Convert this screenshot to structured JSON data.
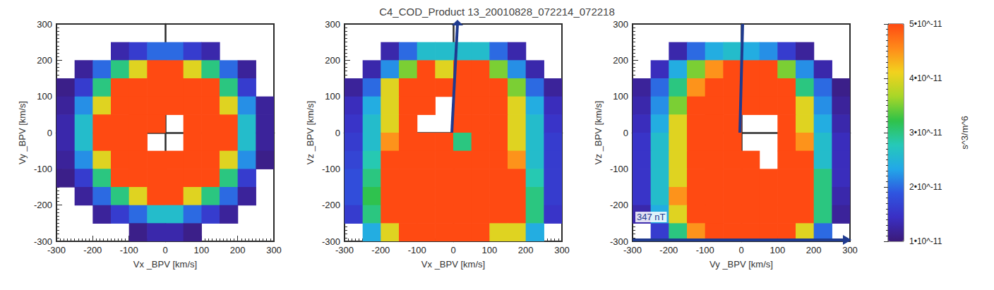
{
  "chart_data": {
    "type": "heatmap",
    "title": "C4_COD_Product 13_20010828_072214_072218",
    "grid": false,
    "x": [
      -275,
      -225,
      -175,
      -125,
      -75,
      -25,
      25,
      75,
      125,
      175,
      225,
      275
    ],
    "y": [
      275,
      225,
      175,
      125,
      75,
      25,
      -25,
      -75,
      -125,
      -175,
      -225,
      -275
    ],
    "panels": [
      {
        "x_label": "Vx _BPV [km/s]",
        "y_label": "Vy _BPV [km/s]",
        "xlim": [
          -300,
          300
        ],
        "ylim": [
          -300,
          300
        ],
        "xticks": [
          -300,
          -200,
          -100,
          0,
          100,
          200,
          300
        ],
        "yticks": [
          -300,
          -200,
          -100,
          0,
          100,
          200,
          300
        ],
        "values": [
          [
            null,
            null,
            null,
            null,
            null,
            null,
            null,
            null,
            null,
            null,
            null,
            null
          ],
          [
            null,
            null,
            null,
            1.3e-11,
            1.6e-11,
            2e-11,
            2e-11,
            1.6e-11,
            1.3e-11,
            null,
            null,
            null
          ],
          [
            null,
            1.2e-11,
            2e-11,
            3e-11,
            4e-11,
            5.5e-11,
            5.5e-11,
            4e-11,
            3e-11,
            2e-11,
            1.2e-11,
            null
          ],
          [
            1.1e-11,
            1.6e-11,
            3e-11,
            5.5e-11,
            5.5e-11,
            5.5e-11,
            5.5e-11,
            5.5e-11,
            5.5e-11,
            3e-11,
            1.6e-11,
            null
          ],
          [
            1.2e-11,
            2.2e-11,
            4e-11,
            5.5e-11,
            5.5e-11,
            5.5e-11,
            5.5e-11,
            5.5e-11,
            5.5e-11,
            4e-11,
            2.2e-11,
            1.2e-11
          ],
          [
            1.3e-11,
            2.6e-11,
            5.5e-11,
            5.5e-11,
            5.5e-11,
            5.5e-11,
            null,
            5.5e-11,
            5.5e-11,
            5.5e-11,
            2.6e-11,
            1.2e-11
          ],
          [
            1.3e-11,
            2.6e-11,
            5.5e-11,
            5.5e-11,
            5.5e-11,
            null,
            null,
            5.5e-11,
            5.5e-11,
            5.5e-11,
            2.6e-11,
            1.2e-11
          ],
          [
            1.2e-11,
            2.2e-11,
            4e-11,
            5.5e-11,
            5.5e-11,
            5.5e-11,
            5.5e-11,
            5.5e-11,
            5.5e-11,
            4e-11,
            2.2e-11,
            1.1e-11
          ],
          [
            1.1e-11,
            1.6e-11,
            3e-11,
            5.5e-11,
            5.5e-11,
            5.5e-11,
            5.5e-11,
            5.5e-11,
            5.5e-11,
            3e-11,
            1.6e-11,
            null
          ],
          [
            null,
            1.2e-11,
            2e-11,
            3e-11,
            4e-11,
            5.5e-11,
            5.5e-11,
            4e-11,
            3e-11,
            2e-11,
            1.2e-11,
            null
          ],
          [
            null,
            null,
            1.2e-11,
            1.6e-11,
            2e-11,
            2.6e-11,
            2.6e-11,
            2e-11,
            1.6e-11,
            1.2e-11,
            null,
            null
          ],
          [
            null,
            null,
            null,
            null,
            1.1e-11,
            1.3e-11,
            1.3e-11,
            1.1e-11,
            null,
            null,
            null,
            null
          ]
        ]
      },
      {
        "x_label": "Vx _BPV [km/s]",
        "y_label": "Vz _BPV [km/s]",
        "xlim": [
          -300,
          300
        ],
        "ylim": [
          -300,
          300
        ],
        "xticks": [
          -300,
          -200,
          -100,
          0,
          100,
          200,
          300
        ],
        "yticks": [
          -300,
          -200,
          -100,
          0,
          100,
          200,
          300
        ],
        "values": [
          [
            null,
            null,
            null,
            null,
            null,
            null,
            null,
            null,
            null,
            null,
            null,
            null
          ],
          [
            null,
            null,
            1.3e-11,
            2e-11,
            2.6e-11,
            2.6e-11,
            2.6e-11,
            2.6e-11,
            2e-11,
            1.3e-11,
            null,
            null
          ],
          [
            null,
            1.3e-11,
            2.2e-11,
            3.5e-11,
            5.5e-11,
            4e-11,
            5.5e-11,
            5.5e-11,
            3.5e-11,
            2.2e-11,
            1.3e-11,
            null
          ],
          [
            1.2e-11,
            2e-11,
            4e-11,
            5.5e-11,
            5.5e-11,
            5.5e-11,
            5.5e-11,
            5.5e-11,
            5.5e-11,
            3.5e-11,
            2e-11,
            1.2e-11
          ],
          [
            1.4e-11,
            2.4e-11,
            4e-11,
            5.5e-11,
            5.5e-11,
            null,
            5.5e-11,
            5.5e-11,
            5.5e-11,
            4e-11,
            2.4e-11,
            1.4e-11
          ],
          [
            1.5e-11,
            2.6e-11,
            4e-11,
            5.5e-11,
            null,
            null,
            5.5e-11,
            5.5e-11,
            5.5e-11,
            4e-11,
            2.6e-11,
            1.5e-11
          ],
          [
            1.6e-11,
            2.6e-11,
            4.5e-11,
            5.5e-11,
            5.5e-11,
            5.5e-11,
            3e-11,
            5.5e-11,
            5.5e-11,
            4e-11,
            2.6e-11,
            1.6e-11
          ],
          [
            1.7e-11,
            2.8e-11,
            5.5e-11,
            5.5e-11,
            5.5e-11,
            5.5e-11,
            5.5e-11,
            5.5e-11,
            5.5e-11,
            4.5e-11,
            2.6e-11,
            1.6e-11
          ],
          [
            1.8e-11,
            3e-11,
            5.5e-11,
            5.5e-11,
            5.5e-11,
            5.5e-11,
            5.5e-11,
            5.5e-11,
            5.5e-11,
            5.5e-11,
            2.8e-11,
            1.6e-11
          ],
          [
            1.8e-11,
            3.2e-11,
            5.5e-11,
            5.5e-11,
            5.5e-11,
            5.5e-11,
            5.5e-11,
            5.5e-11,
            5.5e-11,
            5.5e-11,
            3e-11,
            1.6e-11
          ],
          [
            1.6e-11,
            3e-11,
            5.5e-11,
            5.5e-11,
            5.5e-11,
            5.5e-11,
            5.5e-11,
            5.5e-11,
            5.5e-11,
            5.5e-11,
            3e-11,
            1.5e-11
          ],
          [
            null,
            2.4e-11,
            4e-11,
            5.5e-11,
            5.5e-11,
            5.5e-11,
            5.5e-11,
            5.5e-11,
            4e-11,
            4e-11,
            2.4e-11,
            null
          ]
        ]
      },
      {
        "x_label": "Vy _BPV [km/s]",
        "y_label": "Vz _BPV [km/s]",
        "xlim": [
          -300,
          300
        ],
        "ylim": [
          -300,
          300
        ],
        "xticks": [
          -300,
          -200,
          -100,
          0,
          100,
          200,
          300
        ],
        "yticks": [
          -300,
          -200,
          -100,
          0,
          100,
          200,
          300
        ],
        "annotation": "347 nT",
        "values": [
          [
            null,
            null,
            null,
            null,
            null,
            null,
            null,
            null,
            null,
            null,
            null,
            null
          ],
          [
            null,
            null,
            1.3e-11,
            2e-11,
            2.4e-11,
            2.6e-11,
            2.4e-11,
            2.2e-11,
            1.6e-11,
            1.2e-11,
            null,
            null
          ],
          [
            null,
            1.4e-11,
            2.4e-11,
            3.5e-11,
            4.5e-11,
            5.5e-11,
            5.5e-11,
            5e-11,
            3.5e-11,
            2.2e-11,
            1.3e-11,
            null
          ],
          [
            1.2e-11,
            2e-11,
            3e-11,
            4.5e-11,
            5.5e-11,
            5.5e-11,
            5.5e-11,
            5.5e-11,
            5.5e-11,
            3e-11,
            2e-11,
            1.1e-11
          ],
          [
            1.3e-11,
            2.2e-11,
            3.5e-11,
            5.5e-11,
            5.5e-11,
            5.5e-11,
            5.5e-11,
            5.5e-11,
            5.5e-11,
            4e-11,
            2.2e-11,
            1.2e-11
          ],
          [
            1.4e-11,
            2.4e-11,
            4e-11,
            5.5e-11,
            5.5e-11,
            5.5e-11,
            null,
            null,
            5.5e-11,
            4e-11,
            2.4e-11,
            1.3e-11
          ],
          [
            1.5e-11,
            2.6e-11,
            4e-11,
            5.5e-11,
            5.5e-11,
            5.5e-11,
            null,
            null,
            5.5e-11,
            4.5e-11,
            2.6e-11,
            1.4e-11
          ],
          [
            1.5e-11,
            2.6e-11,
            4e-11,
            5.5e-11,
            5.5e-11,
            5.5e-11,
            5.5e-11,
            null,
            5.5e-11,
            5.5e-11,
            2.6e-11,
            1.4e-11
          ],
          [
            1.5e-11,
            2.6e-11,
            4e-11,
            5.5e-11,
            5.5e-11,
            5.5e-11,
            5.5e-11,
            5.5e-11,
            5.5e-11,
            5.5e-11,
            3e-11,
            1.4e-11
          ],
          [
            1.5e-11,
            2.6e-11,
            4.5e-11,
            5.5e-11,
            5.5e-11,
            5.5e-11,
            5.5e-11,
            5.5e-11,
            5.5e-11,
            5.5e-11,
            3e-11,
            1.3e-11
          ],
          [
            1.3e-11,
            2.4e-11,
            4e-11,
            5.5e-11,
            5.5e-11,
            5.5e-11,
            5.5e-11,
            5.5e-11,
            5.5e-11,
            5.5e-11,
            3e-11,
            1.2e-11
          ],
          [
            null,
            1.6e-11,
            3e-11,
            4.5e-11,
            5.5e-11,
            5.5e-11,
            5.5e-11,
            5.5e-11,
            5.5e-11,
            4e-11,
            2e-11,
            null
          ]
        ]
      }
    ],
    "colorbar": {
      "label": "s^3/m^6",
      "range": [
        1e-11,
        5e-11
      ],
      "ticks": [
        {
          "value": 1e-11,
          "label": "1•10^-11"
        },
        {
          "value": 2e-11,
          "label": "2•10^-11"
        },
        {
          "value": 3e-11,
          "label": "3•10^-11"
        },
        {
          "value": 4e-11,
          "label": "4•10^-11"
        },
        {
          "value": 5e-11,
          "label": "5•10^-11"
        }
      ]
    }
  }
}
